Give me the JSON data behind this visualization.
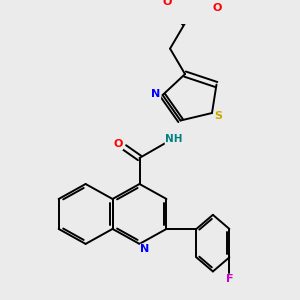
{
  "bg_color": "#ebebeb",
  "bond_color": "#000000",
  "bond_width": 1.4,
  "fig_width": 3.0,
  "fig_height": 3.0,
  "atom_colors": {
    "N": "#0000ff",
    "O": "#ff0000",
    "S": "#ccaa00",
    "F": "#cc00cc",
    "NH": "#008080",
    "C": "#000000"
  }
}
